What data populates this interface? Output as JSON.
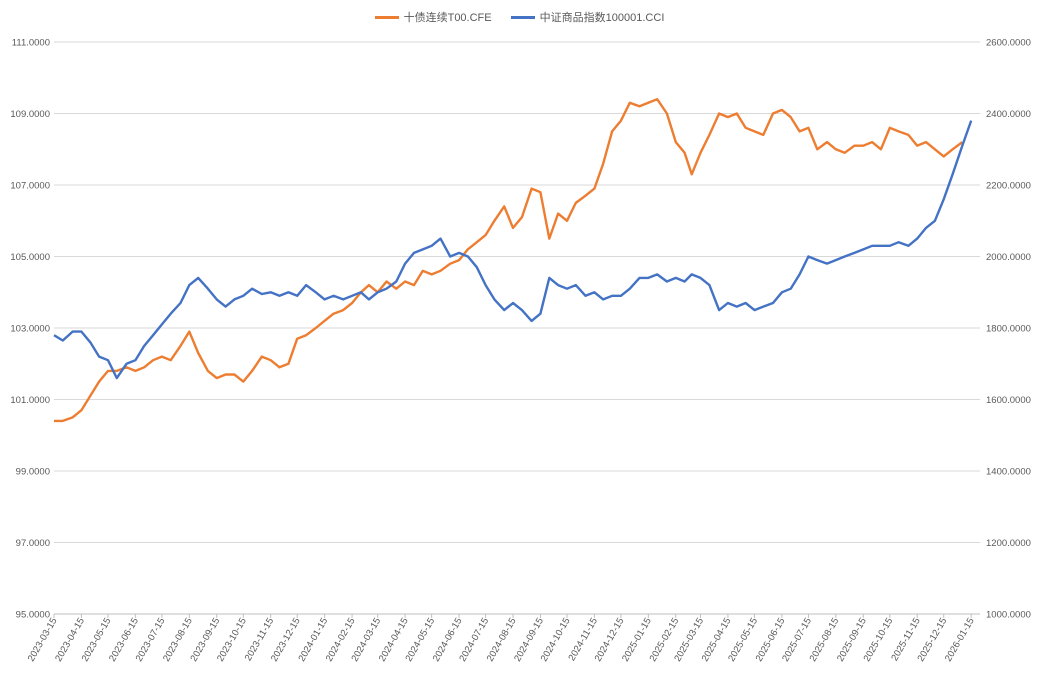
{
  "chart_data": {
    "type": "line",
    "title": "",
    "legend_position": "top",
    "grid": true,
    "x_tick_labels": [
      "2023-03-15",
      "2023-04-15",
      "2023-05-15",
      "2023-06-15",
      "2023-07-15",
      "2023-08-15",
      "2023-09-15",
      "2023-10-15",
      "2023-11-15",
      "2023-12-15",
      "2024-01-15",
      "2024-02-15",
      "2024-03-15",
      "2024-04-15",
      "2024-05-15",
      "2024-06-15",
      "2024-07-15",
      "2024-08-15",
      "2024-09-15",
      "2024-10-15",
      "2024-11-15",
      "2024-12-15",
      "2025-01-15",
      "2025-02-15",
      "2025-03-15",
      "2025-04-15",
      "2025-05-15",
      "2025-06-15",
      "2025-07-15",
      "2025-08-15",
      "2025-09-15",
      "2025-10-15",
      "2025-11-15",
      "2025-12-15",
      "2026-01-15"
    ],
    "y_left": {
      "min": 95,
      "max": 111,
      "ticks": [
        "95.0000",
        "97.0000",
        "99.0000",
        "101.0000",
        "103.0000",
        "105.0000",
        "107.0000",
        "109.0000",
        "111.0000"
      ]
    },
    "y_right": {
      "min": 1000,
      "max": 2600,
      "ticks": [
        "1000.0000",
        "1200.0000",
        "1400.0000",
        "1600.0000",
        "1800.0000",
        "2000.0000",
        "2200.0000",
        "2400.0000",
        "2600.0000"
      ]
    },
    "series": [
      {
        "name": "十债连续T00.CFE",
        "axis": "left",
        "color": "#ED7D31",
        "points": [
          [
            "2023-03-15",
            100.4
          ],
          [
            "2023-03-25",
            100.4
          ],
          [
            "2023-04-05",
            100.5
          ],
          [
            "2023-04-15",
            100.7
          ],
          [
            "2023-04-25",
            101.1
          ],
          [
            "2023-05-05",
            101.5
          ],
          [
            "2023-05-15",
            101.8
          ],
          [
            "2023-05-25",
            101.8
          ],
          [
            "2023-06-05",
            101.9
          ],
          [
            "2023-06-15",
            101.8
          ],
          [
            "2023-06-25",
            101.9
          ],
          [
            "2023-07-05",
            102.1
          ],
          [
            "2023-07-15",
            102.2
          ],
          [
            "2023-07-25",
            102.1
          ],
          [
            "2023-08-05",
            102.5
          ],
          [
            "2023-08-15",
            102.9
          ],
          [
            "2023-08-25",
            102.3
          ],
          [
            "2023-09-05",
            101.8
          ],
          [
            "2023-09-15",
            101.6
          ],
          [
            "2023-09-25",
            101.7
          ],
          [
            "2023-10-05",
            101.7
          ],
          [
            "2023-10-15",
            101.5
          ],
          [
            "2023-10-25",
            101.8
          ],
          [
            "2023-11-05",
            102.2
          ],
          [
            "2023-11-15",
            102.1
          ],
          [
            "2023-11-25",
            101.9
          ],
          [
            "2023-12-05",
            102.0
          ],
          [
            "2023-12-15",
            102.7
          ],
          [
            "2023-12-25",
            102.8
          ],
          [
            "2024-01-05",
            103.0
          ],
          [
            "2024-01-15",
            103.2
          ],
          [
            "2024-01-25",
            103.4
          ],
          [
            "2024-02-05",
            103.5
          ],
          [
            "2024-02-15",
            103.7
          ],
          [
            "2024-02-25",
            104.0
          ],
          [
            "2024-03-05",
            104.2
          ],
          [
            "2024-03-15",
            104.0
          ],
          [
            "2024-03-25",
            104.3
          ],
          [
            "2024-04-05",
            104.1
          ],
          [
            "2024-04-15",
            104.3
          ],
          [
            "2024-04-25",
            104.2
          ],
          [
            "2024-05-05",
            104.6
          ],
          [
            "2024-05-15",
            104.5
          ],
          [
            "2024-05-25",
            104.6
          ],
          [
            "2024-06-05",
            104.8
          ],
          [
            "2024-06-15",
            104.9
          ],
          [
            "2024-06-25",
            105.2
          ],
          [
            "2024-07-05",
            105.4
          ],
          [
            "2024-07-15",
            105.6
          ],
          [
            "2024-07-25",
            106.0
          ],
          [
            "2024-08-05",
            106.4
          ],
          [
            "2024-08-15",
            105.8
          ],
          [
            "2024-08-25",
            106.1
          ],
          [
            "2024-09-05",
            106.9
          ],
          [
            "2024-09-15",
            106.8
          ],
          [
            "2024-09-25",
            105.5
          ],
          [
            "2024-10-05",
            106.2
          ],
          [
            "2024-10-15",
            106.0
          ],
          [
            "2024-10-25",
            106.5
          ],
          [
            "2024-11-05",
            106.7
          ],
          [
            "2024-11-15",
            106.9
          ],
          [
            "2024-11-25",
            107.6
          ],
          [
            "2024-12-05",
            108.5
          ],
          [
            "2024-12-15",
            108.8
          ],
          [
            "2024-12-25",
            109.3
          ],
          [
            "2025-01-05",
            109.2
          ],
          [
            "2025-01-15",
            109.3
          ],
          [
            "2025-01-25",
            109.4
          ],
          [
            "2025-02-05",
            109.0
          ],
          [
            "2025-02-15",
            108.2
          ],
          [
            "2025-02-25",
            107.9
          ],
          [
            "2025-03-05",
            107.3
          ],
          [
            "2025-03-15",
            107.9
          ],
          [
            "2025-03-25",
            108.4
          ],
          [
            "2025-04-05",
            109.0
          ],
          [
            "2025-04-15",
            108.9
          ],
          [
            "2025-04-25",
            109.0
          ],
          [
            "2025-05-05",
            108.6
          ],
          [
            "2025-05-15",
            108.5
          ],
          [
            "2025-05-25",
            108.4
          ],
          [
            "2025-06-05",
            109.0
          ],
          [
            "2025-06-15",
            109.1
          ],
          [
            "2025-06-25",
            108.9
          ],
          [
            "2025-07-05",
            108.5
          ],
          [
            "2025-07-15",
            108.6
          ],
          [
            "2025-07-25",
            108.0
          ],
          [
            "2025-08-05",
            108.2
          ],
          [
            "2025-08-15",
            108.0
          ],
          [
            "2025-08-25",
            107.9
          ],
          [
            "2025-09-05",
            108.1
          ],
          [
            "2025-09-15",
            108.1
          ],
          [
            "2025-09-25",
            108.2
          ],
          [
            "2025-10-05",
            108.0
          ],
          [
            "2025-10-15",
            108.6
          ],
          [
            "2025-10-25",
            108.5
          ],
          [
            "2025-11-05",
            108.4
          ],
          [
            "2025-11-15",
            108.1
          ],
          [
            "2025-11-25",
            108.2
          ],
          [
            "2025-12-05",
            108.0
          ],
          [
            "2025-12-15",
            107.8
          ],
          [
            "2025-12-25",
            108.0
          ],
          [
            "2026-01-05",
            108.2
          ]
        ]
      },
      {
        "name": "中证商品指数100001.CCI",
        "axis": "right",
        "color": "#4472C4",
        "points": [
          [
            "2023-03-15",
            1780
          ],
          [
            "2023-03-25",
            1765
          ],
          [
            "2023-04-05",
            1790
          ],
          [
            "2023-04-15",
            1790
          ],
          [
            "2023-04-25",
            1760
          ],
          [
            "2023-05-05",
            1720
          ],
          [
            "2023-05-15",
            1710
          ],
          [
            "2023-05-25",
            1660
          ],
          [
            "2023-06-05",
            1700
          ],
          [
            "2023-06-15",
            1710
          ],
          [
            "2023-06-25",
            1750
          ],
          [
            "2023-07-05",
            1780
          ],
          [
            "2023-07-15",
            1810
          ],
          [
            "2023-07-25",
            1840
          ],
          [
            "2023-08-05",
            1870
          ],
          [
            "2023-08-15",
            1920
          ],
          [
            "2023-08-25",
            1940
          ],
          [
            "2023-09-05",
            1910
          ],
          [
            "2023-09-15",
            1880
          ],
          [
            "2023-09-25",
            1860
          ],
          [
            "2023-10-05",
            1880
          ],
          [
            "2023-10-15",
            1890
          ],
          [
            "2023-10-25",
            1910
          ],
          [
            "2023-11-05",
            1895
          ],
          [
            "2023-11-15",
            1900
          ],
          [
            "2023-11-25",
            1890
          ],
          [
            "2023-12-05",
            1900
          ],
          [
            "2023-12-15",
            1890
          ],
          [
            "2023-12-25",
            1920
          ],
          [
            "2024-01-05",
            1900
          ],
          [
            "2024-01-15",
            1880
          ],
          [
            "2024-01-25",
            1890
          ],
          [
            "2024-02-05",
            1880
          ],
          [
            "2024-02-15",
            1890
          ],
          [
            "2024-02-25",
            1900
          ],
          [
            "2024-03-05",
            1880
          ],
          [
            "2024-03-15",
            1900
          ],
          [
            "2024-03-25",
            1910
          ],
          [
            "2024-04-05",
            1930
          ],
          [
            "2024-04-15",
            1980
          ],
          [
            "2024-04-25",
            2010
          ],
          [
            "2024-05-05",
            2020
          ],
          [
            "2024-05-15",
            2030
          ],
          [
            "2024-05-25",
            2050
          ],
          [
            "2024-06-05",
            2000
          ],
          [
            "2024-06-15",
            2010
          ],
          [
            "2024-06-25",
            2000
          ],
          [
            "2024-07-05",
            1970
          ],
          [
            "2024-07-15",
            1920
          ],
          [
            "2024-07-25",
            1880
          ],
          [
            "2024-08-05",
            1850
          ],
          [
            "2024-08-15",
            1870
          ],
          [
            "2024-08-25",
            1850
          ],
          [
            "2024-09-05",
            1820
          ],
          [
            "2024-09-15",
            1840
          ],
          [
            "2024-09-25",
            1940
          ],
          [
            "2024-10-05",
            1920
          ],
          [
            "2024-10-15",
            1910
          ],
          [
            "2024-10-25",
            1920
          ],
          [
            "2024-11-05",
            1890
          ],
          [
            "2024-11-15",
            1900
          ],
          [
            "2024-11-25",
            1880
          ],
          [
            "2024-12-05",
            1890
          ],
          [
            "2024-12-15",
            1890
          ],
          [
            "2024-12-25",
            1910
          ],
          [
            "2025-01-05",
            1940
          ],
          [
            "2025-01-15",
            1940
          ],
          [
            "2025-01-25",
            1950
          ],
          [
            "2025-02-05",
            1930
          ],
          [
            "2025-02-15",
            1940
          ],
          [
            "2025-02-25",
            1930
          ],
          [
            "2025-03-05",
            1950
          ],
          [
            "2025-03-15",
            1940
          ],
          [
            "2025-03-25",
            1920
          ],
          [
            "2025-04-05",
            1850
          ],
          [
            "2025-04-15",
            1870
          ],
          [
            "2025-04-25",
            1860
          ],
          [
            "2025-05-05",
            1870
          ],
          [
            "2025-05-15",
            1850
          ],
          [
            "2025-05-25",
            1860
          ],
          [
            "2025-06-05",
            1870
          ],
          [
            "2025-06-15",
            1900
          ],
          [
            "2025-06-25",
            1910
          ],
          [
            "2025-07-05",
            1950
          ],
          [
            "2025-07-15",
            2000
          ],
          [
            "2025-07-25",
            1990
          ],
          [
            "2025-08-05",
            1980
          ],
          [
            "2025-08-15",
            1990
          ],
          [
            "2025-08-25",
            2000
          ],
          [
            "2025-09-05",
            2010
          ],
          [
            "2025-09-15",
            2020
          ],
          [
            "2025-09-25",
            2030
          ],
          [
            "2025-10-05",
            2030
          ],
          [
            "2025-10-15",
            2030
          ],
          [
            "2025-10-25",
            2040
          ],
          [
            "2025-11-05",
            2030
          ],
          [
            "2025-11-15",
            2050
          ],
          [
            "2025-11-25",
            2080
          ],
          [
            "2025-12-05",
            2100
          ],
          [
            "2025-12-15",
            2160
          ],
          [
            "2025-12-25",
            2230
          ],
          [
            "2026-01-05",
            2310
          ],
          [
            "2026-01-15",
            2380
          ]
        ]
      }
    ]
  }
}
